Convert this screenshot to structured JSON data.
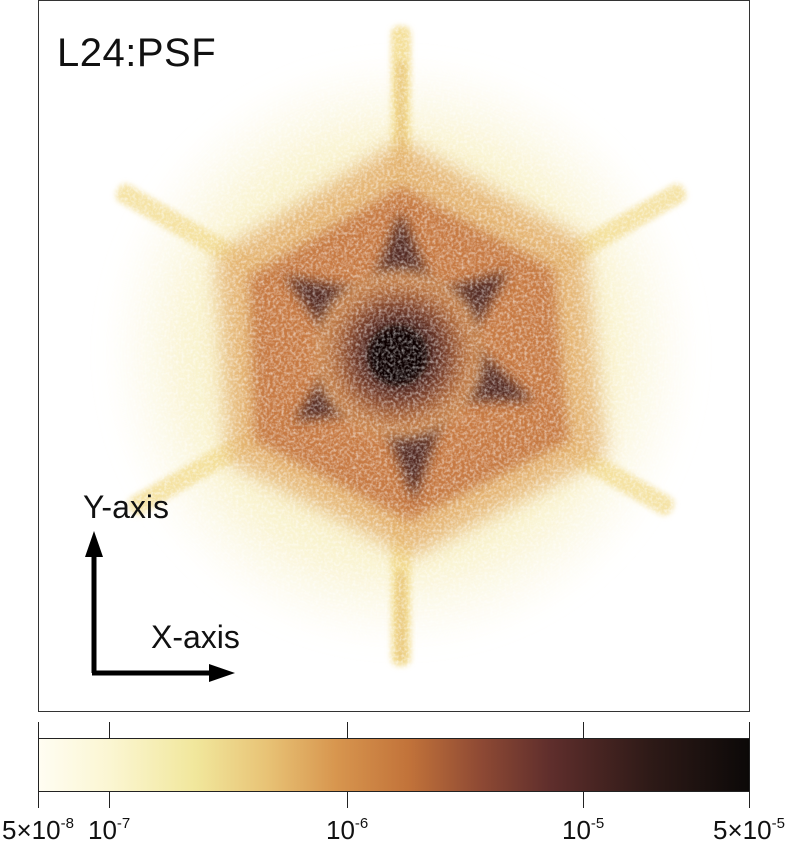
{
  "title": "L24:PSF",
  "axes": {
    "y_label": "Y-axis",
    "x_label": "X-axis"
  },
  "colorbar": {
    "ticks": [
      {
        "base": "5×10",
        "exp": "-8",
        "pos": 0.0
      },
      {
        "base": "10",
        "exp": "-7",
        "pos": 0.1
      },
      {
        "base": "10",
        "exp": "-6",
        "pos": 0.434
      },
      {
        "base": "10",
        "exp": "-5",
        "pos": 0.767
      },
      {
        "base": "5×10",
        "exp": "-5",
        "pos": 1.0
      }
    ],
    "colors": [
      "#fffdf2",
      "#f1e79c",
      "#d7954e",
      "#8f4a34",
      "#0c0908"
    ]
  }
}
